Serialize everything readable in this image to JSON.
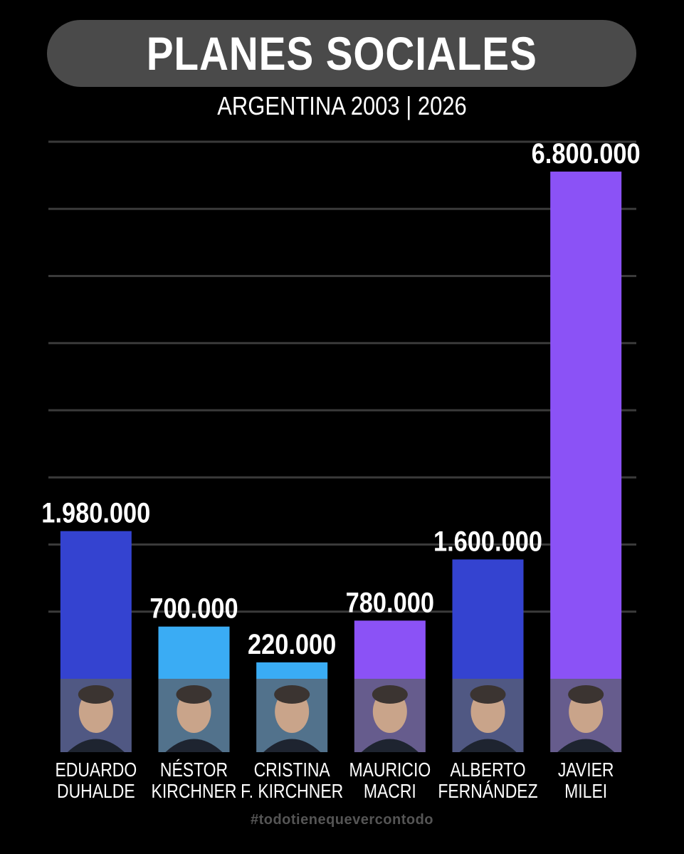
{
  "chart_data": {
    "type": "bar",
    "title": "PLANES SOCIALES",
    "subtitle": "ARGENTINA 2003 | 2026",
    "categories": [
      {
        "line1": "EDUARDO",
        "line2": "DUHALDE"
      },
      {
        "line1": "NÉSTOR",
        "line2": "KIRCHNER"
      },
      {
        "line1": "CRISTINA",
        "line2": "F. KIRCHNER"
      },
      {
        "line1": "MAURICIO",
        "line2": "MACRI"
      },
      {
        "line1": "ALBERTO",
        "line2": "FERNÁNDEZ"
      },
      {
        "line1": "JAVIER",
        "line2": "MILEI"
      }
    ],
    "values": [
      1980000,
      700000,
      220000,
      780000,
      1600000,
      6800000
    ],
    "value_labels": [
      "1.980.000",
      "700.000",
      "220.000",
      "780.000",
      "1.600.000",
      "6.800.000"
    ],
    "colors": [
      "#3443d0",
      "#3aacf4",
      "#3aacf4",
      "#8b52f6",
      "#3443d0",
      "#8b52f6"
    ],
    "ylim": [
      0,
      7200000
    ],
    "grid": true,
    "legend": "none"
  },
  "footer": {
    "hashtag": "#todotienequevercontodo"
  },
  "icons": [
    "portrait-icon"
  ]
}
